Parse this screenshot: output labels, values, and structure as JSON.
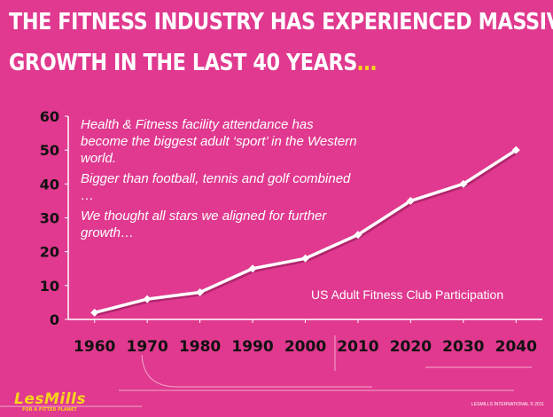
{
  "slide": {
    "title_line1": "THE FITNESS INDUSTRY HAS EXPERIENCED MASSIVE",
    "title_line2_main": "GROWTH IN THE LAST 40 YEARS",
    "title_line2_accent": "…",
    "annotation": [
      "Health & Fitness facility attendance has become the biggest adult ‘sport’ in the Western world.",
      "Bigger than football, tennis and golf combined …",
      "We thought all stars we aligned for further growth…"
    ],
    "chart_caption": "US Adult Fitness Club Participation"
  },
  "branding": {
    "logo": "LesMills",
    "tagline": "FOR A FITTER PLANET",
    "copyright": "LESMILLS INTERNATIONAL © 2011"
  },
  "colors": {
    "background": "#e0398f",
    "accent": "#f7d51c",
    "line": "#ffffff",
    "axis_text": "#111111"
  },
  "chart_data": {
    "type": "line",
    "title": "US Adult Fitness Club Participation",
    "x": [
      "1960",
      "1970",
      "1980",
      "1990",
      "2000",
      "2010",
      "2020",
      "2030",
      "2040"
    ],
    "y": [
      2,
      6,
      8,
      15,
      18,
      25,
      35,
      40,
      50
    ],
    "y_ticks": [
      "0",
      "10",
      "20",
      "30",
      "40",
      "50",
      "60"
    ],
    "ylim": [
      0,
      60
    ],
    "grid": false,
    "marker": "diamond",
    "xlabel": "",
    "ylabel": ""
  }
}
